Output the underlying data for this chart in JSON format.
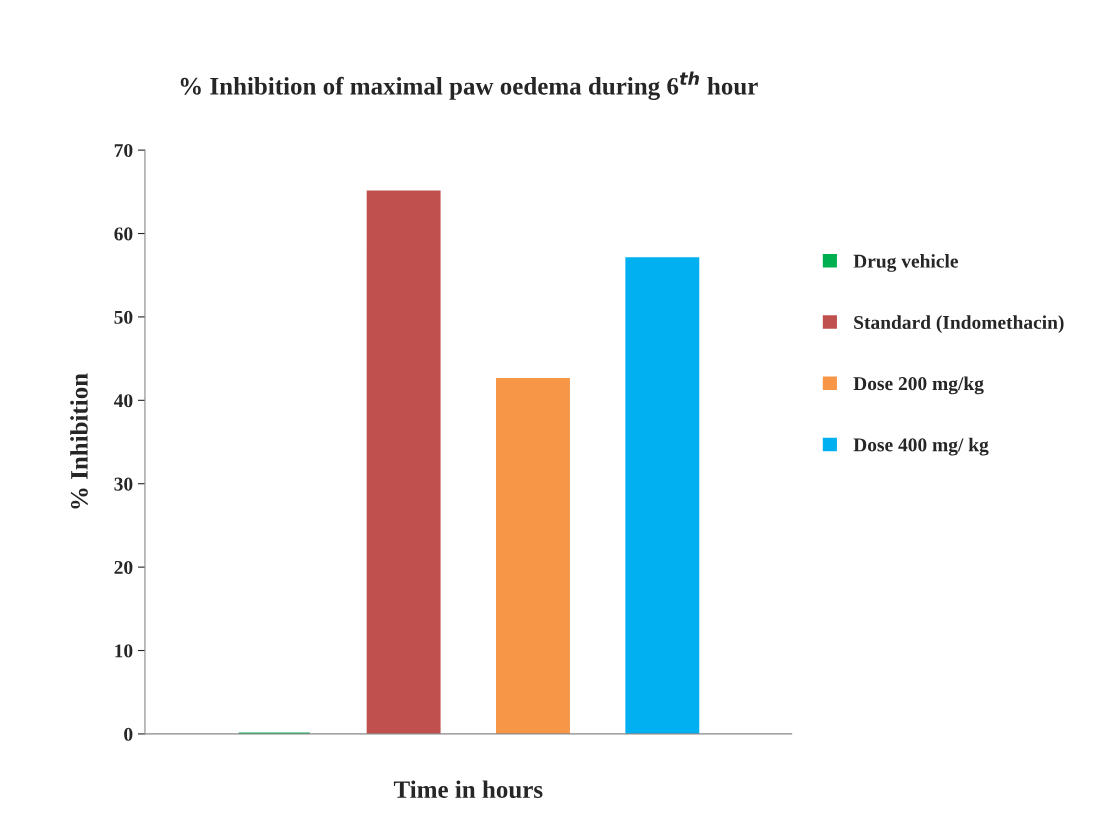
{
  "chart_data": {
    "type": "bar",
    "title": "% Inhibition of maximal paw oedema during 6$^{th}$ hour",
    "xlabel": "Time in hours",
    "ylabel": "% Inhibition",
    "categories": [
      null
    ],
    "series": [
      {
        "name": "Drug vehicle",
        "color": "#00b050",
        "values": [
          0
        ]
      },
      {
        "name": "Standard (Indomethacin)",
        "color": "#c0504d",
        "values": [
          65
        ]
      },
      {
        "name": "Dose 200 mg/kg",
        "color": "#f79646",
        "values": [
          42.5
        ]
      },
      {
        "name": "Dose 400 mg/ kg",
        "color": "#00b0f0",
        "values": [
          57
        ]
      }
    ],
    "ylim": [
      0,
      70
    ],
    "yticks": [
      0,
      10,
      20,
      30,
      40,
      50,
      60,
      70
    ],
    "grid": false,
    "legend": "right"
  }
}
